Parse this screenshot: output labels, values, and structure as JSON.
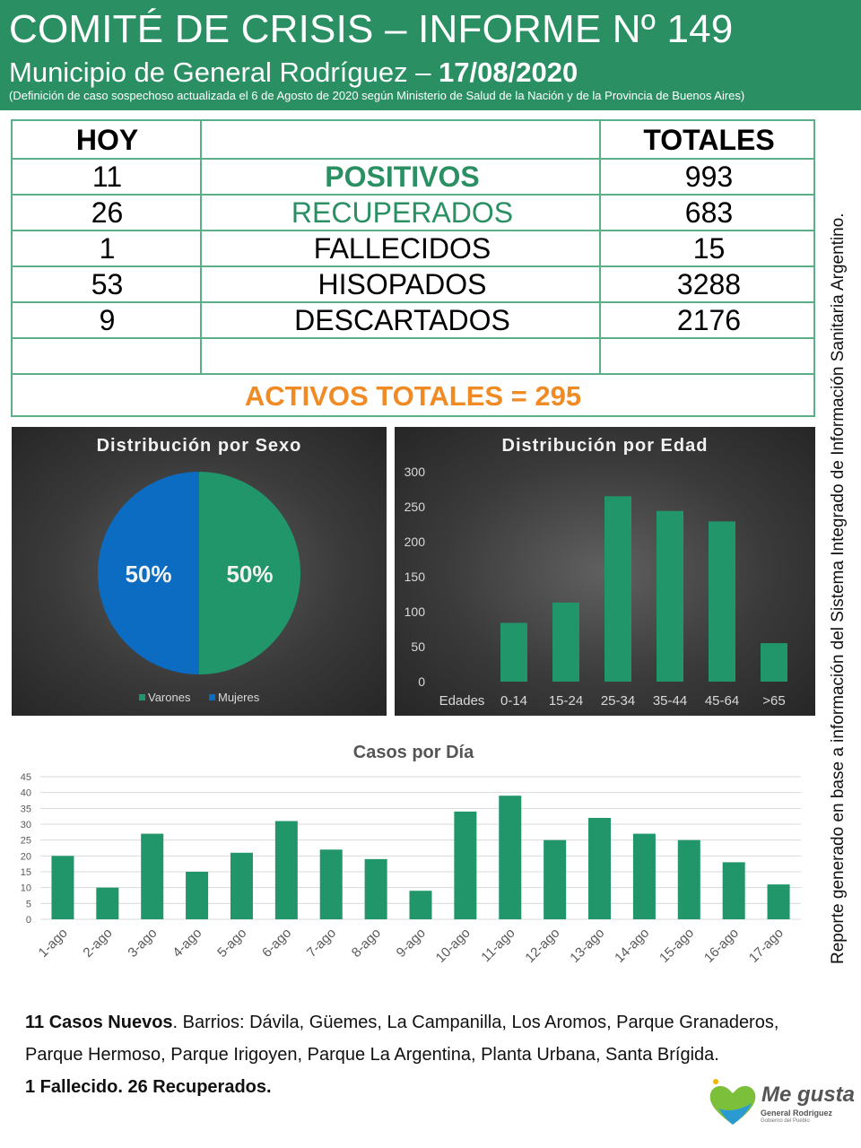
{
  "header": {
    "title": "COMITÉ DE CRISIS – INFORME Nº 149",
    "subtitle_text": "Municipio de General Rodríguez – ",
    "date": "17/08/2020",
    "note": "(Definición de caso sospechoso actualizada el 6 de Agosto de 2020 según Ministerio de Salud de la Nación y de la Provincia de Buenos Aires)"
  },
  "table": {
    "col_hoy": "HOY",
    "col_totales": "TOTALES",
    "rows": [
      {
        "hoy": "11",
        "label": "POSITIVOS",
        "total": "993"
      },
      {
        "hoy": "26",
        "label": "RECUPERADOS",
        "total": "683"
      },
      {
        "hoy": "1",
        "label": "FALLECIDOS",
        "total": "15"
      },
      {
        "hoy": "53",
        "label": "HISOPADOS",
        "total": "3288"
      },
      {
        "hoy": "9",
        "label": "DESCARTADOS",
        "total": "2176"
      }
    ],
    "activos": "ACTIVOS TOTALES = 295"
  },
  "colors": {
    "header_green": "#2a9063",
    "bar_green": "#21966a",
    "female_blue": "#0b6cc2",
    "activos_orange": "#ef8a25",
    "label_green": "#2a9063"
  },
  "chart_data": [
    {
      "type": "pie",
      "title": "Distribución por Sexo",
      "series": [
        {
          "name": "Varones",
          "value": 50,
          "label": "50%",
          "color": "#21966a"
        },
        {
          "name": "Mujeres",
          "value": 50,
          "label": "50%",
          "color": "#0b6cc2"
        }
      ],
      "legend_position": "bottom"
    },
    {
      "type": "bar",
      "title": "Distribución por Edad",
      "categories": [
        "Edades",
        "0-14",
        "15-24",
        "25-34",
        "35-44",
        "45-64",
        ">65"
      ],
      "values": [
        0,
        84,
        113,
        265,
        244,
        229,
        55
      ],
      "ylim": [
        0,
        300
      ],
      "yticks": [
        0,
        50,
        100,
        150,
        200,
        250,
        300
      ],
      "grid": false
    },
    {
      "type": "bar",
      "title": "Casos por Día",
      "categories": [
        "1-ago",
        "2-ago",
        "3-ago",
        "4-ago",
        "5-ago",
        "6-ago",
        "7-ago",
        "8-ago",
        "9-ago",
        "10-ago",
        "11-ago",
        "12-ago",
        "13-ago",
        "14-ago",
        "15-ago",
        "16-ago",
        "17-ago"
      ],
      "values": [
        20,
        10,
        27,
        15,
        21,
        31,
        22,
        19,
        9,
        34,
        39,
        25,
        32,
        27,
        25,
        18,
        11
      ],
      "ylim": [
        0,
        45
      ],
      "yticks": [
        0,
        5,
        10,
        15,
        20,
        25,
        30,
        35,
        40,
        45
      ],
      "grid": true
    }
  ],
  "side_text": "Reporte generado en base a información del Sistema Integrado de Información Sanitaria Argentino.",
  "summary": {
    "line1_bold": "11 Casos Nuevos",
    "line1_rest": ". Barrios: Dávila, Güemes, La Campanilla, Los Aromos, Parque Granaderos,",
    "line2": "Parque Hermoso, Parque Irigoyen, Parque La Argentina, Planta Urbana, Santa Brígida.",
    "line3_bold": "1 Fallecido. 26 Recuperados."
  },
  "logo": {
    "brand": "Me gusta",
    "sub": "General Rodríguez",
    "sub2": "Gobierno del Pueblo"
  }
}
